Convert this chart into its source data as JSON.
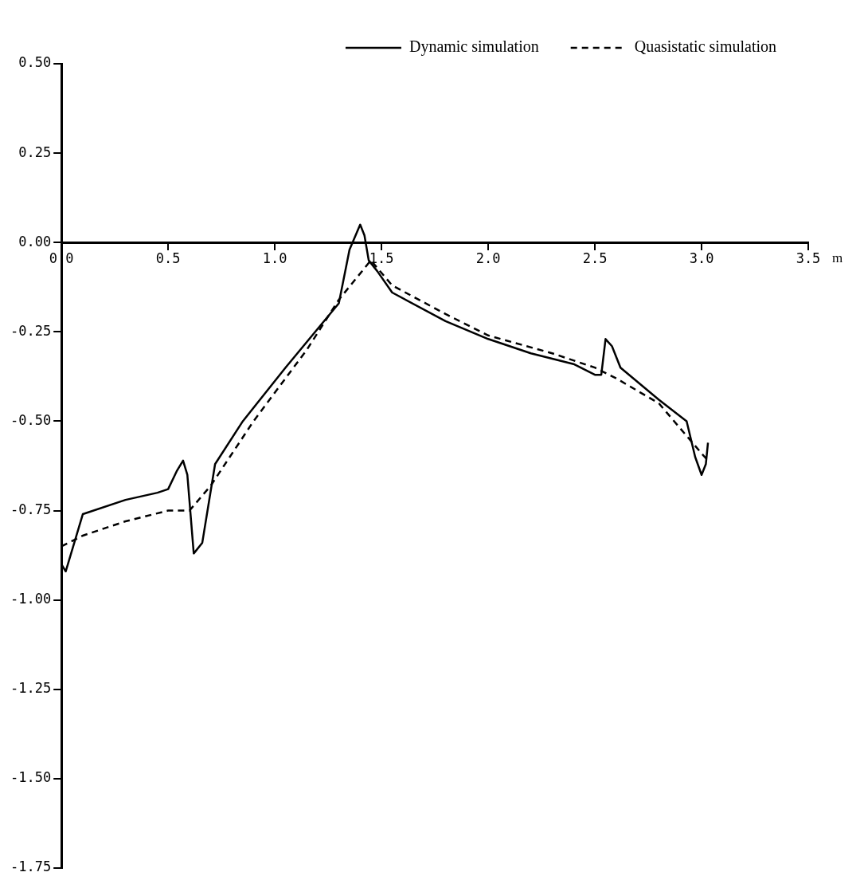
{
  "chart_data": {
    "type": "line",
    "xlabel": "m",
    "legend": "top right",
    "grid": false,
    "marker": "none",
    "xlim": [
      0,
      3.5
    ],
    "ylim": [
      -1.75,
      0.5
    ],
    "xticks": [
      {
        "value": 0,
        "label": "0.0"
      },
      {
        "value": 0.5,
        "label": "0.5"
      },
      {
        "value": 1,
        "label": "1.0"
      },
      {
        "value": 1.5,
        "label": "1.5"
      },
      {
        "value": 2,
        "label": "2.0"
      },
      {
        "value": 2.5,
        "label": "2.5"
      },
      {
        "value": 3,
        "label": "3.0"
      },
      {
        "value": 3.5,
        "label": "3.5"
      }
    ],
    "yticks": [
      {
        "value": 0.5,
        "label": "0.50"
      },
      {
        "value": 0.25,
        "label": "0.25"
      },
      {
        "value": 0,
        "label": "0.00"
      },
      {
        "value": -0.25,
        "label": "-0.25"
      },
      {
        "value": -0.5,
        "label": "-0.50"
      },
      {
        "value": -0.75,
        "label": "-0.75"
      },
      {
        "value": -1,
        "label": "-1.00"
      },
      {
        "value": -1.25,
        "label": "-1.25"
      },
      {
        "value": -1.5,
        "label": "-1.50"
      },
      {
        "value": -1.75,
        "label": "-1.75"
      }
    ],
    "series": [
      {
        "name": "Dynamic simulation",
        "color": "#000000",
        "line_style": "solid",
        "x": [
          0,
          0.02,
          0.1,
          0.3,
          0.45,
          0.5,
          0.54,
          0.57,
          0.59,
          0.62,
          0.66,
          0.72,
          0.85,
          1.05,
          1.3,
          1.35,
          1.4,
          1.42,
          1.44,
          1.48,
          1.55,
          1.8,
          2.0,
          2.2,
          2.4,
          2.5,
          2.53,
          2.55,
          2.58,
          2.62,
          2.8,
          2.93,
          2.97,
          3.0,
          3.02,
          3.03
        ],
        "values": [
          -0.9,
          -0.92,
          -0.76,
          -0.72,
          -0.7,
          -0.69,
          -0.64,
          -0.61,
          -0.65,
          -0.87,
          -0.84,
          -0.62,
          -0.5,
          -0.35,
          -0.17,
          -0.02,
          0.05,
          0.02,
          -0.05,
          -0.08,
          -0.14,
          -0.22,
          -0.27,
          -0.31,
          -0.34,
          -0.37,
          -0.37,
          -0.27,
          -0.29,
          -0.35,
          -0.44,
          -0.5,
          -0.6,
          -0.65,
          -0.62,
          -0.56
        ]
      },
      {
        "name": "Quasistatic simulation",
        "color": "#000000",
        "line_style": "dashed",
        "x": [
          0,
          0.1,
          0.3,
          0.5,
          0.6,
          0.7,
          0.9,
          1.15,
          1.3,
          1.45,
          1.55,
          1.8,
          2.0,
          2.3,
          2.5,
          2.6,
          2.8,
          2.9,
          3.0,
          3.03
        ],
        "values": [
          -0.85,
          -0.82,
          -0.78,
          -0.75,
          -0.75,
          -0.68,
          -0.5,
          -0.3,
          -0.16,
          -0.05,
          -0.12,
          -0.2,
          -0.26,
          -0.31,
          -0.35,
          -0.38,
          -0.45,
          -0.52,
          -0.59,
          -0.61
        ]
      }
    ]
  }
}
